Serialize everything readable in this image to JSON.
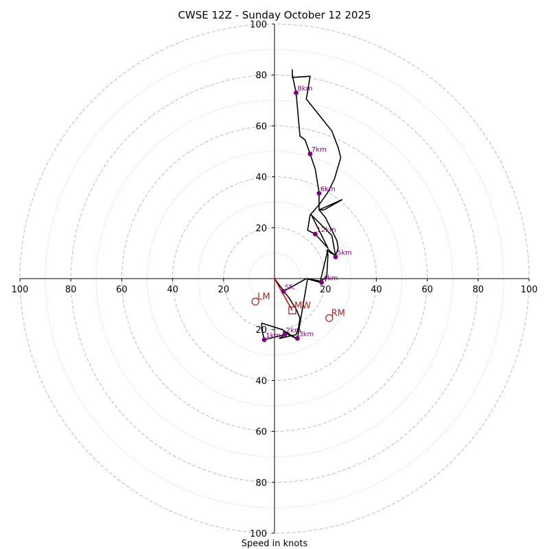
{
  "chart_data": {
    "type": "line",
    "title": "CWSE 12Z - Sunday October 12 2025",
    "xlabel": "Speed in knots",
    "ylabel": "",
    "xlim": [
      -100,
      100
    ],
    "ylim": [
      -100,
      100
    ],
    "rings_major": [
      20,
      40,
      60,
      80,
      100
    ],
    "rings_minor": [
      10,
      30,
      50,
      70,
      90
    ],
    "x_ticks": [
      "100",
      "80",
      "60",
      "40",
      "20",
      "20",
      "40",
      "60",
      "80",
      "100"
    ],
    "x_tick_values": [
      -100,
      -80,
      -60,
      -40,
      -20,
      20,
      40,
      60,
      80,
      100
    ],
    "y_ticks": [
      "100",
      "80",
      "60",
      "40",
      "20",
      "20",
      "40",
      "60",
      "80",
      "100"
    ],
    "y_tick_values": [
      100,
      80,
      60,
      40,
      20,
      -20,
      -40,
      -60,
      -80,
      -100
    ],
    "hodograph": [
      [
        0.0,
        0.0
      ],
      [
        3.0,
        -4.0
      ],
      [
        6.0,
        -8.0
      ],
      [
        8.5,
        -12.0
      ],
      [
        10.0,
        -15.5
      ],
      [
        9.5,
        -19.0
      ],
      [
        8.5,
        -22.0
      ],
      [
        2.0,
        -23.5
      ],
      [
        4.0,
        -22.0
      ],
      [
        -4.0,
        -24.0
      ],
      [
        -5.0,
        -20.0
      ],
      [
        -5.0,
        -17.5
      ],
      [
        3.0,
        -20.0
      ],
      [
        8.5,
        -23.5
      ],
      [
        3.5,
        -21.0
      ],
      [
        9.0,
        -23.5
      ],
      [
        9.0,
        -23.5
      ],
      [
        13.0,
        0.0
      ],
      [
        18.0,
        -1.0
      ],
      [
        20.5,
        0.5
      ],
      [
        21.0,
        9.5
      ],
      [
        20.5,
        11.0
      ],
      [
        24.0,
        9.0
      ],
      [
        25.0,
        12.0
      ],
      [
        24.5,
        15.0
      ],
      [
        22.0,
        20.0
      ],
      [
        20.0,
        24.0
      ],
      [
        17.5,
        27.0
      ],
      [
        26.5,
        31.0
      ],
      [
        19.5,
        27.0
      ],
      [
        17.5,
        27.0
      ],
      [
        17.5,
        29.0
      ],
      [
        21.0,
        34.0
      ],
      [
        23.5,
        39.0
      ],
      [
        26.0,
        47.5
      ],
      [
        25.0,
        51.5
      ],
      [
        22.5,
        58.0
      ],
      [
        12.5,
        70.5
      ],
      [
        14.0,
        79.5
      ],
      [
        7.0,
        79.0
      ],
      [
        7.0,
        82.0
      ],
      [
        7.0,
        80.0
      ],
      [
        8.5,
        73.0
      ],
      [
        10.0,
        56.0
      ],
      [
        12.0,
        54.5
      ],
      [
        14.0,
        49.0
      ],
      [
        16.0,
        43.0
      ],
      [
        17.5,
        34.0
      ],
      [
        17.5,
        29.0
      ],
      [
        14.0,
        25.0
      ],
      [
        13.0,
        19.0
      ],
      [
        16.0,
        17.5
      ],
      [
        21.0,
        12.0
      ],
      [
        14.5,
        25.0
      ],
      [
        22.5,
        17.0
      ],
      [
        24.0,
        9.0
      ],
      [
        21.0,
        11.5
      ],
      [
        18.0,
        -1.0
      ],
      [
        18.0,
        -1.5
      ],
      [
        12.5,
        0.0
      ],
      [
        3.5,
        -5.0
      ]
    ],
    "height_markers": [
      {
        "label": "Sfc",
        "x": 3.5,
        "y": -5.0
      },
      {
        "label": "1km",
        "x": -4.0,
        "y": -24.0
      },
      {
        "label": "2km",
        "x": 4.0,
        "y": -22.0
      },
      {
        "label": "3km",
        "x": 9.0,
        "y": -23.5
      },
      {
        "label": "4km",
        "x": 18.5,
        "y": -1.5
      },
      {
        "label": "5km",
        "x": 24.0,
        "y": 8.5
      },
      {
        "label": "6km",
        "x": 17.5,
        "y": 33.5
      },
      {
        "label": "7km",
        "x": 14.0,
        "y": 49.0
      },
      {
        "label": "8km",
        "x": 8.5,
        "y": 73.0
      },
      {
        "label": "12km",
        "x": 16.0,
        "y": 17.5
      }
    ],
    "storm_motion": {
      "lm": {
        "label": "LM",
        "x": -7.5,
        "y": -9.0
      },
      "rm": {
        "label": "RM",
        "x": 21.5,
        "y": -15.5
      },
      "mw": {
        "label": "MW",
        "x": 7.0,
        "y": -12.5
      }
    },
    "shear_vector": [
      [
        0.0,
        0.0
      ],
      [
        7.0,
        -12.5
      ]
    ],
    "colors": {
      "trace": "#000000",
      "markers": "#800080",
      "storm": "#b22222",
      "shear": "#e00000",
      "grid": "#bbbbbb"
    }
  }
}
